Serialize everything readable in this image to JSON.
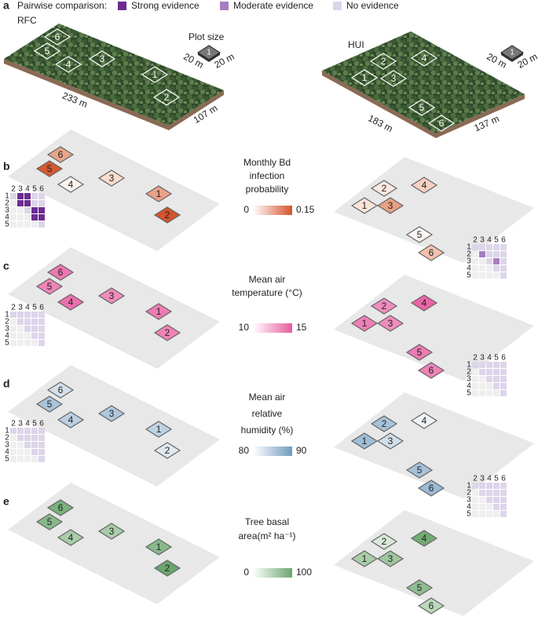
{
  "legend": {
    "panel_label": "a",
    "title": "Pairwise comparison:",
    "items": [
      {
        "label": "Strong evidence",
        "color": "#6a2c91"
      },
      {
        "label": "Moderate evidence",
        "color": "#a57fbf"
      },
      {
        "label": "No evidence",
        "color": "#ddd5ea"
      }
    ]
  },
  "sites": [
    {
      "name": "RFC",
      "length": "233 m",
      "width": "107 m"
    },
    {
      "name": "HUI",
      "length": "183 m",
      "width": "137 m"
    }
  ],
  "plot_size": {
    "title": "Plot size",
    "side_a": "20 m",
    "side_b": "20 m"
  },
  "plots": [
    "1",
    "2",
    "3",
    "4",
    "5",
    "6"
  ],
  "matrix_columns": [
    "2",
    "3",
    "4",
    "5",
    "6"
  ],
  "matrix_rows": [
    "1",
    "2",
    "3",
    "4",
    "5"
  ],
  "panels": [
    {
      "label": "b",
      "title_lines": [
        "Monthly Bd",
        "infection",
        "probability"
      ],
      "scale_min": 0,
      "scale_max": 0.15,
      "scale_color": "#d4532a",
      "plot_colors": [
        [
          "#eba088",
          "#d4532a",
          "#f9ddd0",
          "#fdf3ee",
          "#d4592f",
          "#e8a68a"
        ],
        [
          "#fbe3d8",
          "#fbe8de",
          "#e8a085",
          "#f6d0c0",
          "#fef6f2",
          "#f2c1ad"
        ]
      ],
      "matrices": [
        [
          [
            "#ddd5ea",
            "#6a2c91",
            "#6a2c91",
            "#ddd5ea",
            "#ddd5ea"
          ],
          [
            "#6a2c91",
            "#6a2c91",
            "#ddd5ea",
            "#ddd5ea"
          ],
          [
            "#ddd5ea",
            "#6a2c91",
            "#6a2c91"
          ],
          [
            "#6a2c91",
            "#6a2c91"
          ],
          [
            "#ddd5ea"
          ]
        ],
        [
          [
            "#ddd5ea",
            "#ddd5ea",
            "#ddd5ea",
            "#ddd5ea",
            "#ddd5ea"
          ],
          [
            "#a57fbf",
            "#ddd5ea",
            "#ddd5ea",
            "#ddd5ea"
          ],
          [
            "#ddd5ea",
            "#a57fbf",
            "#ddd5ea"
          ],
          [
            "#ddd5ea",
            "#ddd5ea"
          ],
          [
            "#ddd5ea"
          ]
        ]
      ]
    },
    {
      "label": "c",
      "title_lines": [
        "Mean air",
        "temperature (°C)"
      ],
      "scale_min": 10,
      "scale_max": 15,
      "scale_color": "#e85a9e",
      "plot_colors": [
        [
          "#ed7bb2",
          "#ee84b7",
          "#ef8cbb",
          "#ec70ac",
          "#ee85b8",
          "#ec78b0"
        ],
        [
          "#ee80b5",
          "#f08cbd",
          "#ef8dbd",
          "#ea64a6",
          "#ed7ab2",
          "#ee82b6"
        ]
      ],
      "matrices": [
        [
          [
            "#ddd5ea",
            "#ddd5ea",
            "#ddd5ea",
            "#ddd5ea",
            "#ddd5ea"
          ],
          [
            "#ddd5ea",
            "#ddd5ea",
            "#ddd5ea",
            "#ddd5ea"
          ],
          [
            "#ddd5ea",
            "#ddd5ea",
            "#ddd5ea"
          ],
          [
            "#ddd5ea",
            "#ddd5ea"
          ],
          [
            "#ddd5ea"
          ]
        ],
        [
          [
            "#ddd5ea",
            "#ddd5ea",
            "#ddd5ea",
            "#ddd5ea",
            "#ddd5ea"
          ],
          [
            "#ddd5ea",
            "#ddd5ea",
            "#ddd5ea",
            "#ddd5ea"
          ],
          [
            "#ddd5ea",
            "#ddd5ea",
            "#ddd5ea"
          ],
          [
            "#ddd5ea",
            "#ddd5ea"
          ],
          [
            "#ddd5ea"
          ]
        ]
      ]
    },
    {
      "label": "d",
      "title_lines": [
        "Mean air",
        "relative",
        "humidity (%)"
      ],
      "scale_min": 80,
      "scale_max": 90,
      "scale_color": "#6f9cc0",
      "plot_colors": [
        [
          "#bed2e2",
          "#dfe9f1",
          "#aec7dc",
          "#bcd0e2",
          "#a9c4da",
          "#d4e1ec"
        ],
        [
          "#a0bdd6",
          "#a6c2d9",
          "#cfdeea",
          "#eef3f7",
          "#a6c2d9",
          "#9cbad4"
        ]
      ],
      "matrices": [
        [
          [
            "#ddd5ea",
            "#ddd5ea",
            "#ddd5ea",
            "#ddd5ea",
            "#ddd5ea"
          ],
          [
            "#ddd5ea",
            "#ddd5ea",
            "#ddd5ea",
            "#ddd5ea"
          ],
          [
            "#ddd5ea",
            "#ddd5ea",
            "#ddd5ea"
          ],
          [
            "#ddd5ea",
            "#ddd5ea"
          ],
          [
            "#ddd5ea"
          ]
        ],
        [
          [
            "#ddd5ea",
            "#ddd5ea",
            "#ddd5ea",
            "#ddd5ea",
            "#ddd5ea"
          ],
          [
            "#ddd5ea",
            "#ddd5ea",
            "#ddd5ea",
            "#ddd5ea"
          ],
          [
            "#ddd5ea",
            "#ddd5ea",
            "#ddd5ea"
          ],
          [
            "#ddd5ea",
            "#ddd5ea"
          ],
          [
            "#ddd5ea"
          ]
        ]
      ]
    },
    {
      "label": "e",
      "title_lines": [
        "Tree basal",
        "area(m² ha⁻¹)"
      ],
      "scale_min": 0,
      "scale_max": 100,
      "scale_color": "#6aa56d",
      "plot_colors": [
        [
          "#88b98a",
          "#6aa56d",
          "#a9cca9",
          "#a9cca9",
          "#88b98a",
          "#7bb17c"
        ],
        [
          "#a9cca9",
          "#d7e8d6",
          "#a0c6a0",
          "#72ab74",
          "#90bd90",
          "#bcd7bb"
        ]
      ]
    }
  ]
}
